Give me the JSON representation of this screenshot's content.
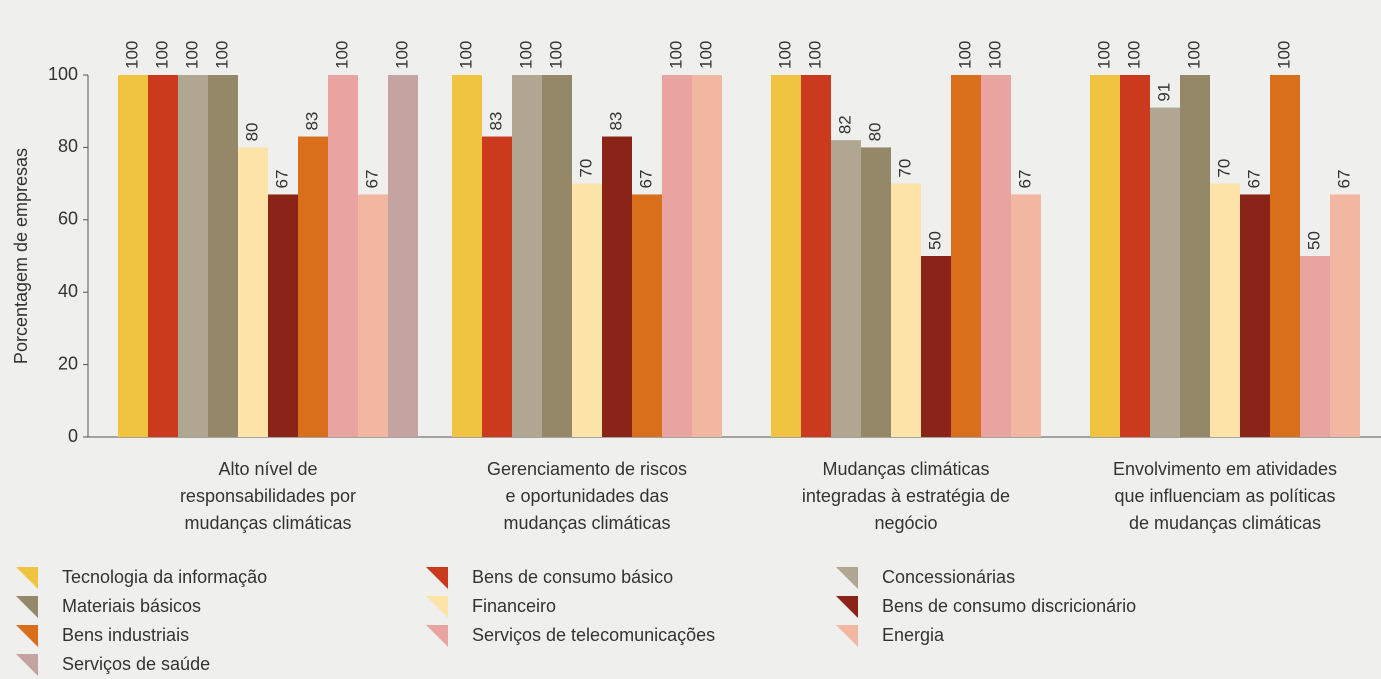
{
  "chart_data": {
    "type": "bar",
    "y_label": "Porcentagem de empresas",
    "categories": [
      [
        "Alto nível de",
        "responsabilidades por",
        "mudanças climáticas"
      ],
      [
        "Gerenciamento de riscos",
        "e oportunidades das",
        "mudanças climáticas"
      ],
      [
        "Mudanças climáticas",
        "integradas à estratégia de",
        "negócio"
      ],
      [
        "Envolvimento em atividades",
        "que influenciam as políticas",
        "de mudanças climáticas"
      ]
    ],
    "series": [
      {
        "name": "Tecnologia da informação",
        "color": "#f0c340",
        "values": [
          100,
          100,
          100,
          100
        ]
      },
      {
        "name": "Bens de consumo básico",
        "color": "#cc3a1e",
        "values": [
          100,
          83,
          100,
          100
        ]
      },
      {
        "name": "Concessionárias",
        "color": "#b0a692",
        "values": [
          100,
          100,
          82,
          91
        ]
      },
      {
        "name": "Materiais básicos",
        "color": "#958868",
        "values": [
          100,
          100,
          80,
          100
        ]
      },
      {
        "name": "Financeiro",
        "color": "#fee3a8",
        "values": [
          80,
          70,
          70,
          70
        ]
      },
      {
        "name": "Bens de consumo discricionário",
        "color": "#8b2418",
        "values": [
          67,
          83,
          50,
          67
        ]
      },
      {
        "name": "Bens industriais",
        "color": "#d96f1a",
        "values": [
          83,
          67,
          100,
          100
        ]
      },
      {
        "name": "Serviços de telecomunicações",
        "color": "#e9a3a0",
        "values": [
          100,
          100,
          100,
          50
        ]
      },
      {
        "name": "Energia",
        "color": "#f2b7a0",
        "values": [
          67,
          100,
          67,
          67
        ]
      },
      {
        "name": "Serviços de saúde",
        "color": "#c4a3a0",
        "values": [
          100,
          null,
          null,
          null
        ]
      }
    ],
    "ylim": [
      0,
      100
    ],
    "yticks": [
      0,
      20,
      40,
      60,
      80,
      100
    ]
  }
}
